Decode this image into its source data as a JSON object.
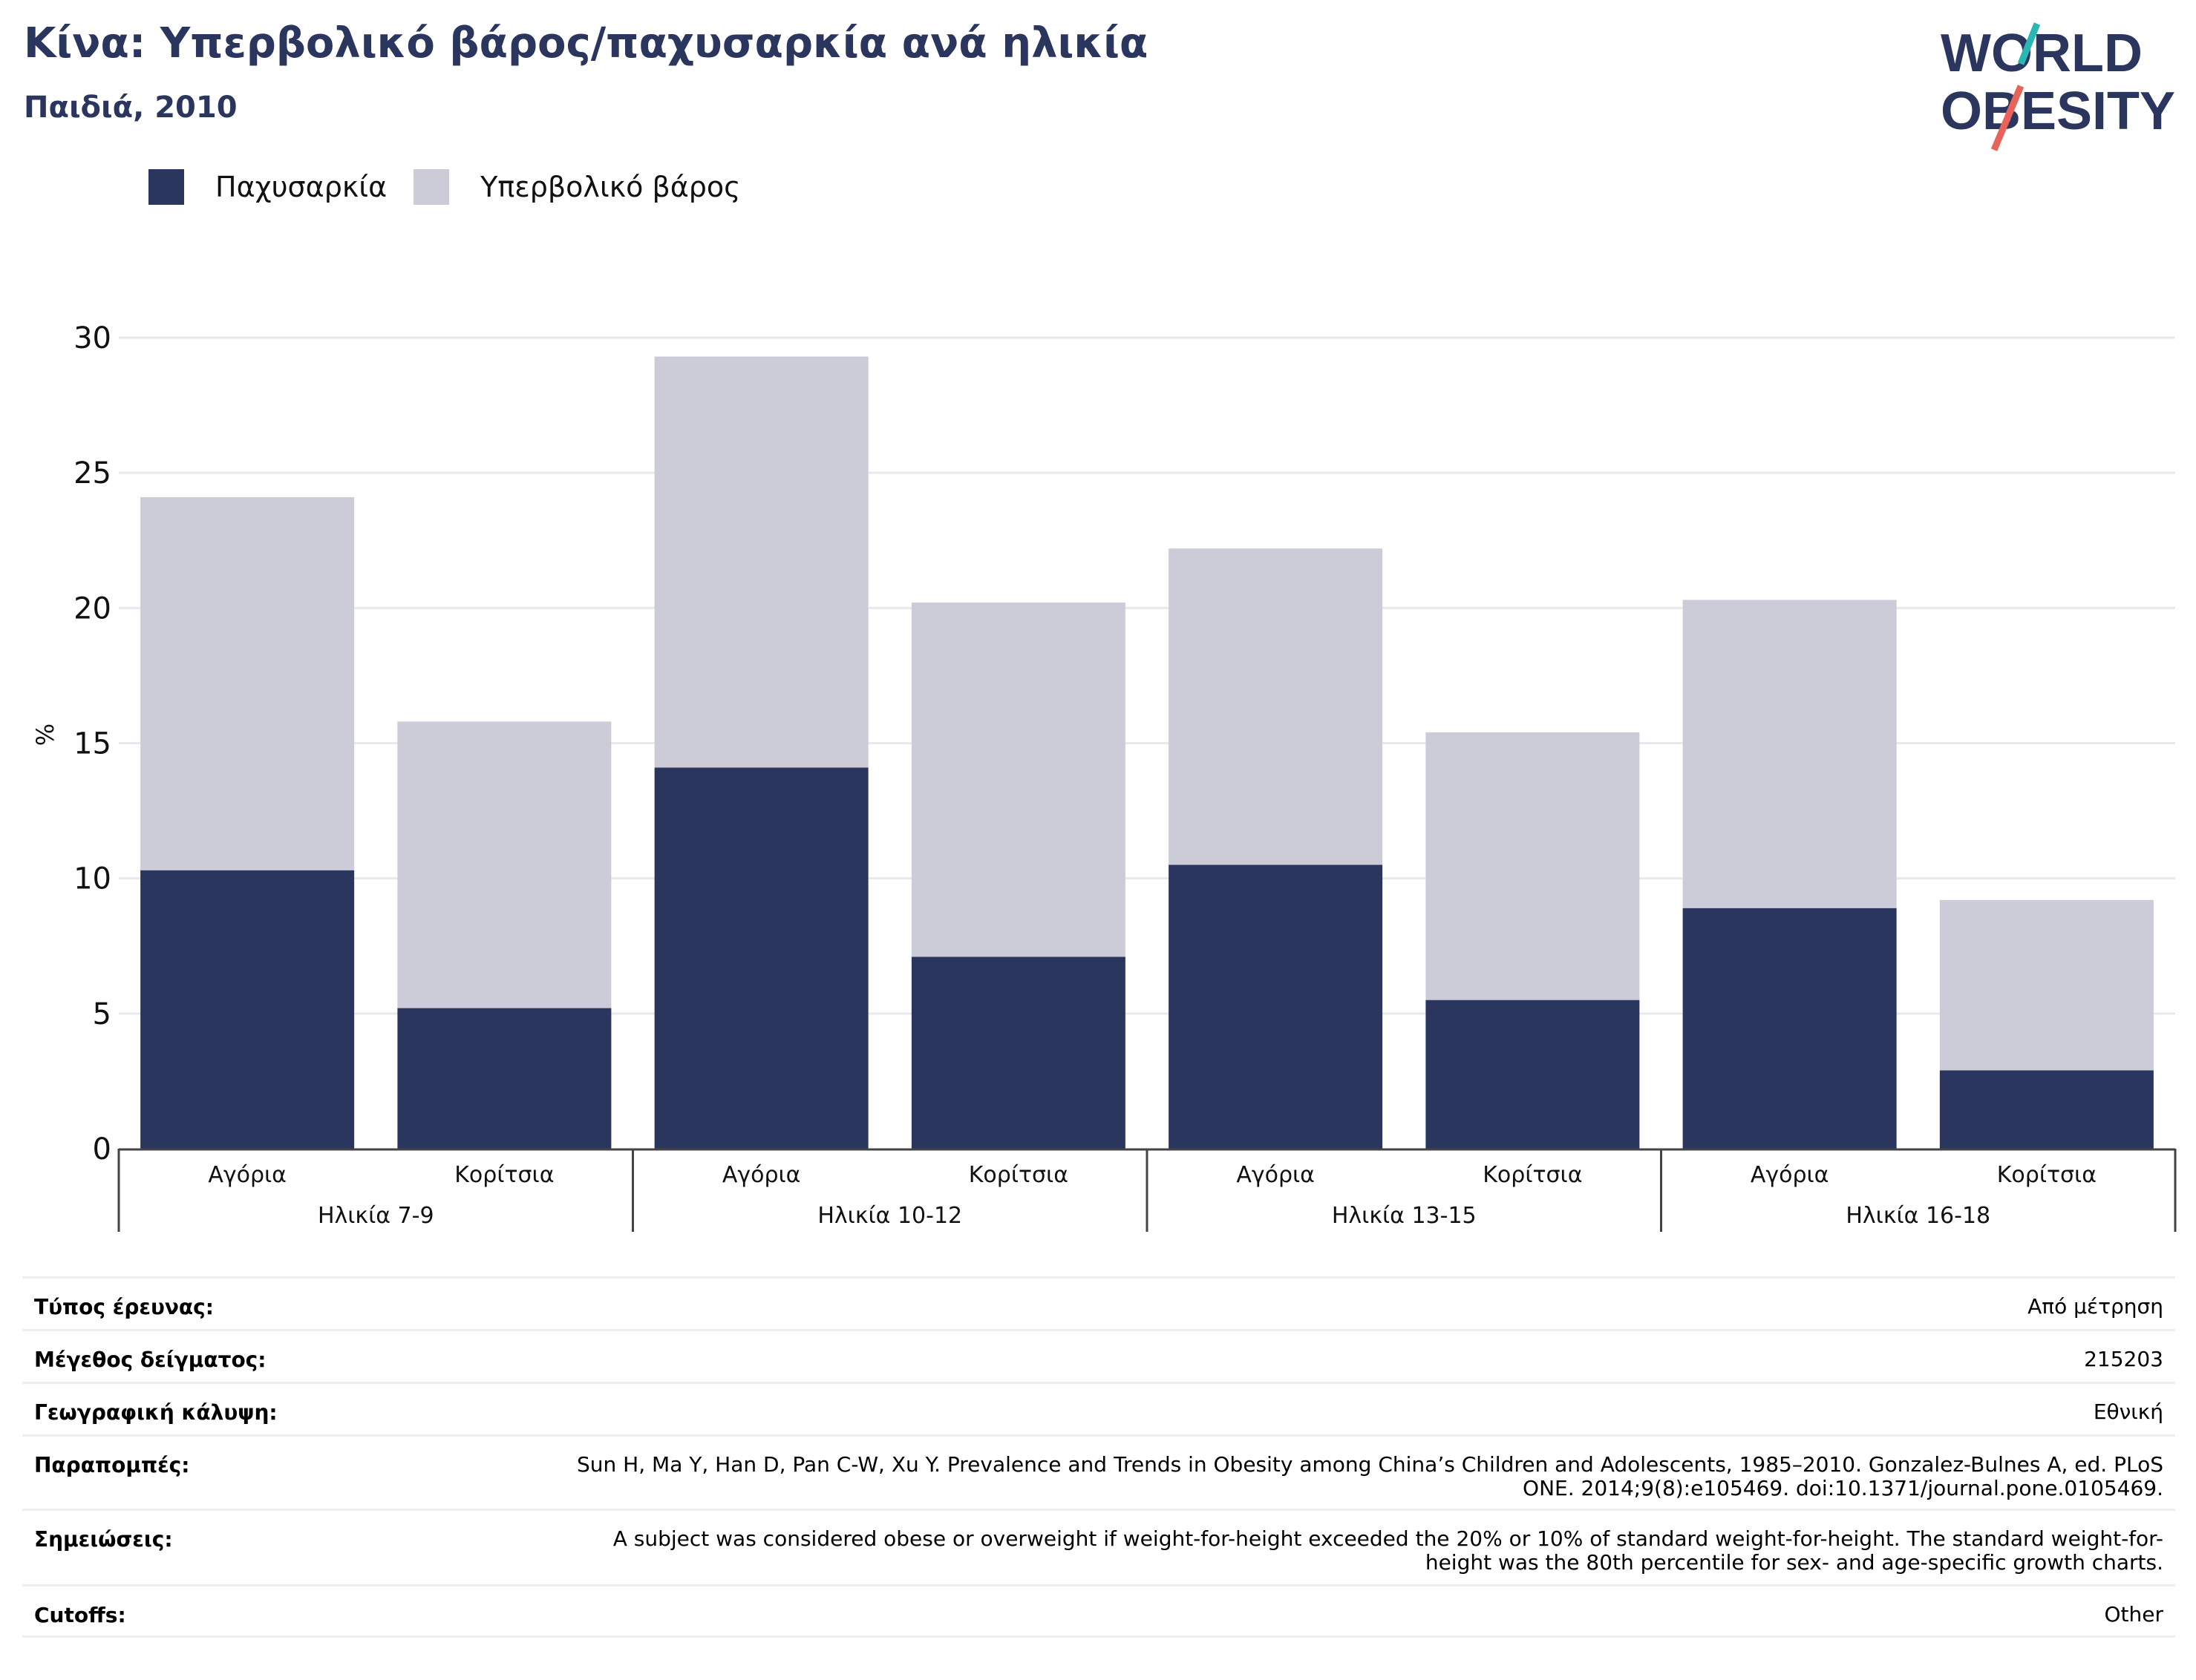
{
  "header": {
    "title": "Κίνα: Υπερβολικό βάρος/παχυσαρκία ανά ηλικία",
    "subtitle": "Παιδιά, 2010"
  },
  "logo": {
    "line1": "WORLD",
    "line2": "OBESITY"
  },
  "legend": {
    "items": [
      {
        "label": "Παχυσαρκία",
        "color": "#2b365f"
      },
      {
        "label": "Υπερβολικό βάρος",
        "color": "#cbccd8"
      }
    ]
  },
  "chart_data": {
    "type": "bar",
    "stacked": true,
    "ylabel": "%",
    "ylim": [
      0,
      30
    ],
    "yticks": [
      0,
      5,
      10,
      15,
      20,
      25,
      30
    ],
    "grid": true,
    "legend_position": "top-left",
    "groups": [
      "Ηλικία 7-9",
      "Ηλικία 10-12",
      "Ηλικία 13-15",
      "Ηλικία 16-18"
    ],
    "categories": [
      "Αγόρια",
      "Κορίτσια",
      "Αγόρια",
      "Κορίτσια",
      "Αγόρια",
      "Κορίτσια",
      "Αγόρια",
      "Κορίτσια"
    ],
    "series": [
      {
        "name": "Παχυσαρκία",
        "color": "#2b365f",
        "values": [
          10.3,
          5.2,
          14.1,
          7.1,
          10.5,
          5.5,
          8.9,
          2.9
        ]
      },
      {
        "name": "Υπερβολικό βάρος",
        "color": "#cbccd8",
        "values": [
          13.8,
          10.6,
          15.2,
          13.1,
          11.7,
          9.9,
          11.4,
          6.3
        ]
      }
    ]
  },
  "meta": [
    {
      "label": "Τύπος έρευνας:",
      "value": "Από μέτρηση"
    },
    {
      "label": "Μέγεθος δείγματος:",
      "value": "215203"
    },
    {
      "label": "Γεωγραφική κάλυψη:",
      "value": "Εθνική"
    },
    {
      "label": "Παραπομπές:",
      "value": "Sun H, Ma Y, Han D, Pan C-W, Xu Y. Prevalence and Trends in Obesity among China’s Children and Adolescents, 1985–2010. Gonzalez-Bulnes A, ed. PLoS ONE. 2014;9(8):e105469. doi:10.1371/journal.pone.0105469."
    },
    {
      "label": "Σημειώσεις:",
      "value": "A subject was considered obese or overweight if weight-for-height exceeded the 20% or 10% of standard weight-for-height. The standard weight-for-height was the 80th percentile for sex- and age-specific growth charts."
    },
    {
      "label": "Cutoffs:",
      "value": "Other"
    }
  ]
}
